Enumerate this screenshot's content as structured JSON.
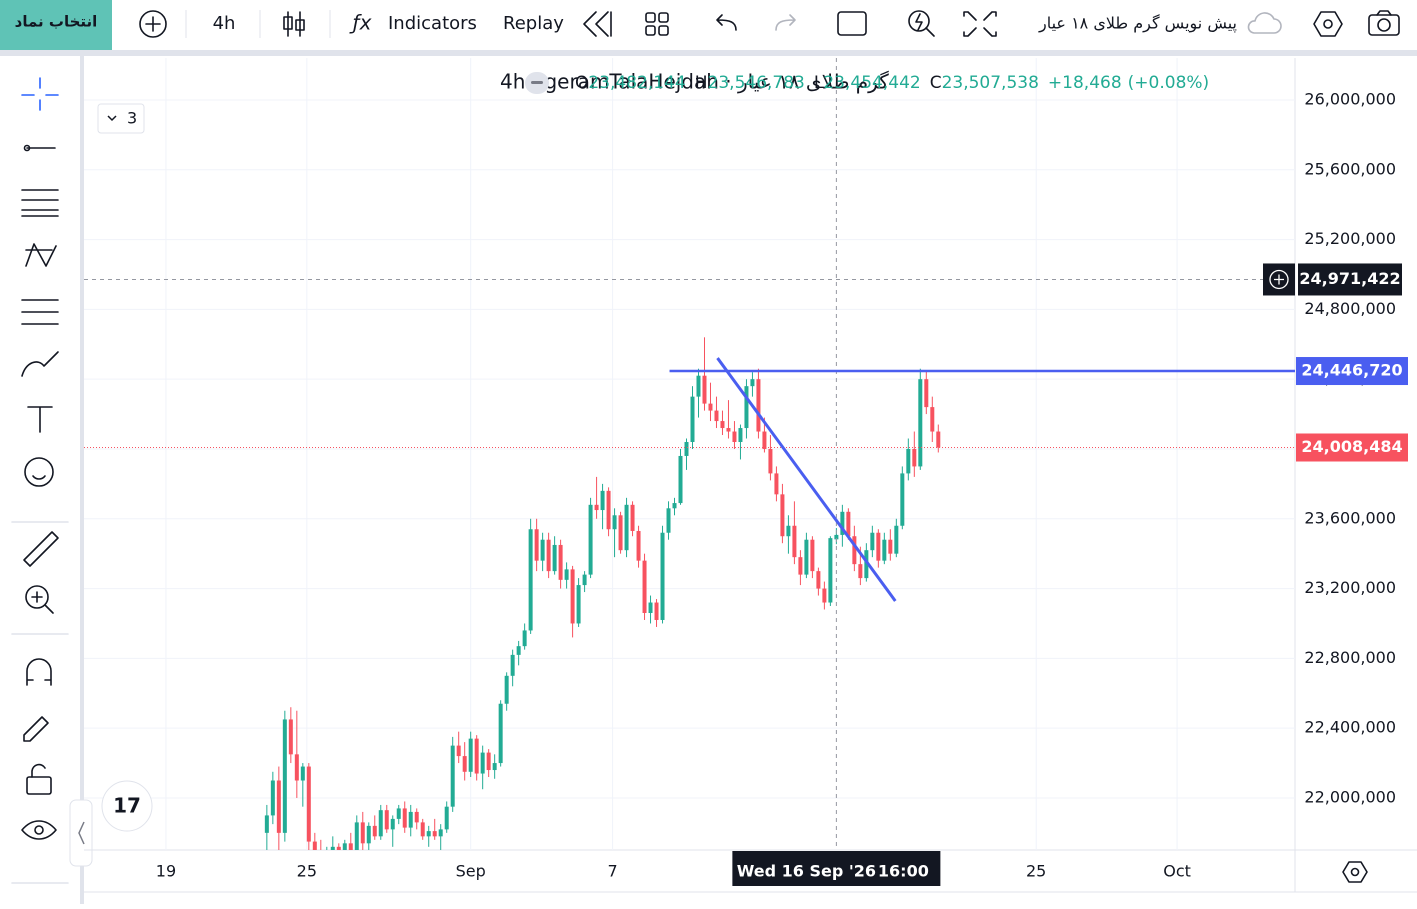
{
  "toolbar": {
    "symbol_button": "انتخاب نماد",
    "interval": "4h",
    "indicators": "Indicators",
    "replay": "Replay",
    "layout_name": "پیش نویس گرم طلای ۱۸ عیار"
  },
  "chart_data": {
    "type": "candlestick",
    "title": "گرم طلای ۱۸ عیار · 4h · geramTalaHejdah",
    "collapsed_indicators": 3,
    "legend": {
      "open": {
        "letter": "O",
        "value": 23482144,
        "label": "23,482,144"
      },
      "high": {
        "letter": "H",
        "value": 23546783,
        "label": "23,546,783"
      },
      "low": {
        "letter": "L",
        "value": 23454442,
        "label": "23,454,442"
      },
      "close": {
        "letter": "C",
        "value": 23507538,
        "label": "23,507,538"
      },
      "change": {
        "value": 18468,
        "label": "+18,468"
      },
      "change_percent": {
        "value": 0.08,
        "label": "(+0.08%)"
      }
    },
    "up_color": "#22ab94",
    "down_color": "#f7525f",
    "ohlc": [
      [
        21800000,
        21960000,
        21650000,
        21900000
      ],
      [
        21900000,
        22150000,
        21850000,
        22100000
      ],
      [
        22100000,
        22180000,
        21700000,
        21800000
      ],
      [
        21800000,
        22500000,
        21750000,
        22450000
      ],
      [
        22450000,
        22520000,
        22200000,
        22250000
      ],
      [
        22250000,
        22500000,
        22000000,
        22100000
      ],
      [
        22100000,
        22200000,
        21950000,
        22180000
      ],
      [
        22180000,
        22200000,
        21700000,
        21750000
      ],
      [
        21750000,
        21800000,
        21650000,
        21700000
      ],
      [
        21700000,
        21760000,
        21600000,
        21650000
      ],
      [
        21650000,
        21720000,
        21600000,
        21700000
      ],
      [
        21700000,
        21780000,
        21650000,
        21720000
      ],
      [
        21720000,
        21740000,
        21640000,
        21680000
      ],
      [
        21680000,
        21760000,
        21640000,
        21740000
      ],
      [
        21740000,
        21800000,
        21680000,
        21700000
      ],
      [
        21700000,
        21900000,
        21680000,
        21860000
      ],
      [
        21860000,
        21920000,
        21700000,
        21740000
      ],
      [
        21740000,
        21860000,
        21700000,
        21840000
      ],
      [
        21840000,
        21900000,
        21760000,
        21780000
      ],
      [
        21780000,
        21960000,
        21760000,
        21930000
      ],
      [
        21930000,
        21960000,
        21800000,
        21820000
      ],
      [
        21820000,
        21900000,
        21720000,
        21880000
      ],
      [
        21880000,
        21960000,
        21850000,
        21940000
      ],
      [
        21940000,
        21980000,
        21800000,
        21830000
      ],
      [
        21830000,
        21960000,
        21780000,
        21920000
      ],
      [
        21920000,
        21940000,
        21820000,
        21860000
      ],
      [
        21860000,
        21880000,
        21760000,
        21780000
      ],
      [
        21780000,
        21840000,
        21720000,
        21810000
      ],
      [
        21810000,
        21880000,
        21760000,
        21780000
      ],
      [
        21780000,
        21850000,
        21700000,
        21820000
      ],
      [
        21820000,
        21980000,
        21800000,
        21950000
      ],
      [
        21950000,
        22350000,
        21920000,
        22300000
      ],
      [
        22300000,
        22380000,
        22200000,
        22240000
      ],
      [
        22240000,
        22320000,
        22100000,
        22150000
      ],
      [
        22150000,
        22380000,
        22120000,
        22340000
      ],
      [
        22340000,
        22360000,
        22100000,
        22140000
      ],
      [
        22140000,
        22300000,
        22050000,
        22260000
      ],
      [
        22260000,
        22280000,
        22120000,
        22160000
      ],
      [
        22160000,
        22250000,
        22110000,
        22200000
      ],
      [
        22200000,
        22560000,
        22180000,
        22540000
      ],
      [
        22540000,
        22720000,
        22500000,
        22700000
      ],
      [
        22700000,
        22850000,
        22640000,
        22820000
      ],
      [
        22820000,
        22900000,
        22760000,
        22870000
      ],
      [
        22870000,
        23000000,
        22850000,
        22960000
      ],
      [
        22960000,
        23600000,
        22940000,
        23540000
      ],
      [
        23540000,
        23600000,
        23300000,
        23360000
      ],
      [
        23360000,
        23520000,
        23300000,
        23480000
      ],
      [
        23480000,
        23520000,
        23260000,
        23300000
      ],
      [
        23300000,
        23500000,
        23280000,
        23450000
      ],
      [
        23450000,
        23480000,
        23200000,
        23250000
      ],
      [
        23250000,
        23350000,
        23200000,
        23310000
      ],
      [
        23310000,
        23330000,
        22920000,
        23000000
      ],
      [
        23000000,
        23260000,
        22980000,
        23220000
      ],
      [
        23220000,
        23300000,
        23180000,
        23280000
      ],
      [
        23280000,
        23720000,
        23260000,
        23680000
      ],
      [
        23680000,
        23840000,
        23600000,
        23650000
      ],
      [
        23650000,
        23800000,
        23540000,
        23760000
      ],
      [
        23760000,
        23780000,
        23500000,
        23540000
      ],
      [
        23540000,
        23660000,
        23380000,
        23620000
      ],
      [
        23620000,
        23640000,
        23400000,
        23420000
      ],
      [
        23420000,
        23720000,
        23380000,
        23680000
      ],
      [
        23680000,
        23700000,
        23500000,
        23530000
      ],
      [
        23530000,
        23560000,
        23320000,
        23360000
      ],
      [
        23360000,
        23400000,
        23020000,
        23060000
      ],
      [
        23060000,
        23160000,
        23000000,
        23120000
      ],
      [
        23120000,
        23140000,
        22980000,
        23020000
      ],
      [
        23020000,
        23560000,
        23000000,
        23520000
      ],
      [
        23520000,
        23700000,
        23480000,
        23660000
      ],
      [
        23660000,
        23720000,
        23620000,
        23690000
      ],
      [
        23690000,
        24000000,
        23680000,
        23960000
      ],
      [
        23960000,
        24060000,
        23880000,
        24040000
      ],
      [
        24040000,
        24360000,
        24000000,
        24300000
      ],
      [
        24300000,
        24460000,
        24180000,
        24420000
      ],
      [
        24420000,
        24640000,
        24220000,
        24260000
      ],
      [
        24260000,
        24380000,
        24160000,
        24220000
      ],
      [
        24220000,
        24300000,
        24120000,
        24160000
      ],
      [
        24160000,
        24220000,
        24080000,
        24120000
      ],
      [
        24120000,
        24280000,
        24060000,
        24100000
      ],
      [
        24100000,
        24160000,
        24000000,
        24040000
      ],
      [
        24040000,
        24140000,
        23940000,
        24120000
      ],
      [
        24120000,
        24400000,
        24060000,
        24360000
      ],
      [
        24360000,
        24440000,
        24300000,
        24400000
      ],
      [
        24400000,
        24460000,
        24060000,
        24100000
      ],
      [
        24100000,
        24180000,
        23980000,
        24000000
      ],
      [
        24000000,
        24080000,
        23820000,
        23860000
      ],
      [
        23860000,
        23900000,
        23700000,
        23740000
      ],
      [
        23740000,
        23800000,
        23460000,
        23500000
      ],
      [
        23500000,
        23620000,
        23400000,
        23560000
      ],
      [
        23560000,
        23700000,
        23340000,
        23380000
      ],
      [
        23380000,
        23420000,
        23220000,
        23280000
      ],
      [
        23280000,
        23520000,
        23260000,
        23480000
      ],
      [
        23480000,
        23500000,
        23260000,
        23300000
      ],
      [
        23300000,
        23320000,
        23160000,
        23200000
      ],
      [
        23200000,
        23240000,
        23080000,
        23120000
      ],
      [
        23120000,
        23500000,
        23100000,
        23489070
      ],
      [
        23482144,
        23546783,
        23454442,
        23507538
      ],
      [
        23507538,
        23680000,
        23440000,
        23640000
      ],
      [
        23640000,
        23660000,
        23480000,
        23500000
      ],
      [
        23500000,
        23560000,
        23300000,
        23340000
      ],
      [
        23340000,
        23440000,
        23220000,
        23260000
      ],
      [
        23260000,
        23460000,
        23240000,
        23420000
      ],
      [
        23420000,
        23560000,
        23380000,
        23520000
      ],
      [
        23520000,
        23540000,
        23320000,
        23360000
      ],
      [
        23360000,
        23520000,
        23340000,
        23480000
      ],
      [
        23480000,
        23540000,
        23360000,
        23400000
      ],
      [
        23400000,
        23600000,
        23380000,
        23560000
      ],
      [
        23560000,
        23900000,
        23540000,
        23860000
      ],
      [
        23860000,
        24060000,
        23820000,
        24000000
      ],
      [
        24000000,
        24100000,
        23840000,
        23900000
      ],
      [
        23900000,
        24460000,
        23880000,
        24400000
      ],
      [
        24400000,
        24450000,
        24200000,
        24240000
      ],
      [
        24240000,
        24300000,
        24040000,
        24100000
      ],
      [
        24100000,
        24140000,
        23980000,
        24008484
      ]
    ],
    "xlim": [
      -30.5,
      171.5
    ],
    "xticks": [
      {
        "value": -16.83,
        "label": "19"
      },
      {
        "value": 6.67,
        "label": "25"
      },
      {
        "value": 34,
        "label": "Sep"
      },
      {
        "value": 57.67,
        "label": "7"
      },
      {
        "value": 128.33,
        "label": "25"
      },
      {
        "value": 151.83,
        "label": "Oct"
      }
    ],
    "ylim": [
      21701750,
      26240700
    ],
    "yticks": [
      {
        "value": 22000000,
        "label": "22,000,000"
      },
      {
        "value": 22400000,
        "label": "22,400,000"
      },
      {
        "value": 22800000,
        "label": "22,800,000"
      },
      {
        "value": 23200000,
        "label": "23,200,000"
      },
      {
        "value": 23600000,
        "label": "23,600,000"
      },
      {
        "value": 24000000,
        "label": "24,000,000"
      },
      {
        "value": 24400000,
        "label": "24,400,000"
      },
      {
        "value": 24800000,
        "label": "24,800,000"
      },
      {
        "value": 25200000,
        "label": "25,200,000"
      },
      {
        "value": 25600000,
        "label": "25,600,000"
      },
      {
        "value": 26000000,
        "label": "26,000,000"
      }
    ],
    "grid": true,
    "crosshair": {
      "x": 95,
      "date_label": "Wed 16 Sep '26",
      "time_label": "16:00",
      "y": {
        "value": 24971422,
        "label": "24,971,422"
      }
    },
    "horizontal_line": {
      "x_start": 67.17,
      "value": 24446720,
      "label": "24,446,720",
      "color": "#4a5ef0"
    },
    "trendline": {
      "x": [
        75.17,
        104.83
      ],
      "y": [
        24521000,
        23129000
      ],
      "color": "#4a5ef0"
    },
    "last_price": {
      "value": 24008484,
      "label": "24,008,484"
    }
  }
}
